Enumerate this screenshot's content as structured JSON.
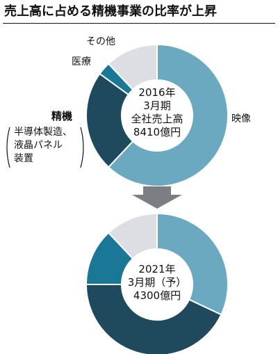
{
  "title": "売上高に占める精機事業の比率が上昇",
  "colors": {
    "映像": "#6aa9bf",
    "精機": "#1f4a5e",
    "医療": "#1a7896",
    "その他": "#dddee4",
    "stroke": "#ffffff",
    "arrow": "#7b7f84"
  },
  "labels": {
    "other": "その他",
    "medical": "医療",
    "imaging": "映像",
    "precision": "精機",
    "precision_note_lines": [
      "半導体製造、",
      "液晶パネル",
      "装置"
    ]
  },
  "chart_data": [
    {
      "type": "pie",
      "center_lines": [
        "2016年",
        "3月期",
        "全社売上高",
        "8410億円"
      ],
      "slices": [
        {
          "name": "映像",
          "value": 62
        },
        {
          "name": "精機",
          "value": 23
        },
        {
          "name": "医療",
          "value": 3
        },
        {
          "name": "その他",
          "value": 12
        }
      ]
    },
    {
      "type": "pie",
      "center_lines": [
        "2021年",
        "3月期（予）",
        "4300億円"
      ],
      "slices": [
        {
          "name": "映像",
          "value": 32
        },
        {
          "name": "精機",
          "value": 43
        },
        {
          "name": "医療",
          "value": 13
        },
        {
          "name": "その他",
          "value": 12
        }
      ]
    }
  ]
}
